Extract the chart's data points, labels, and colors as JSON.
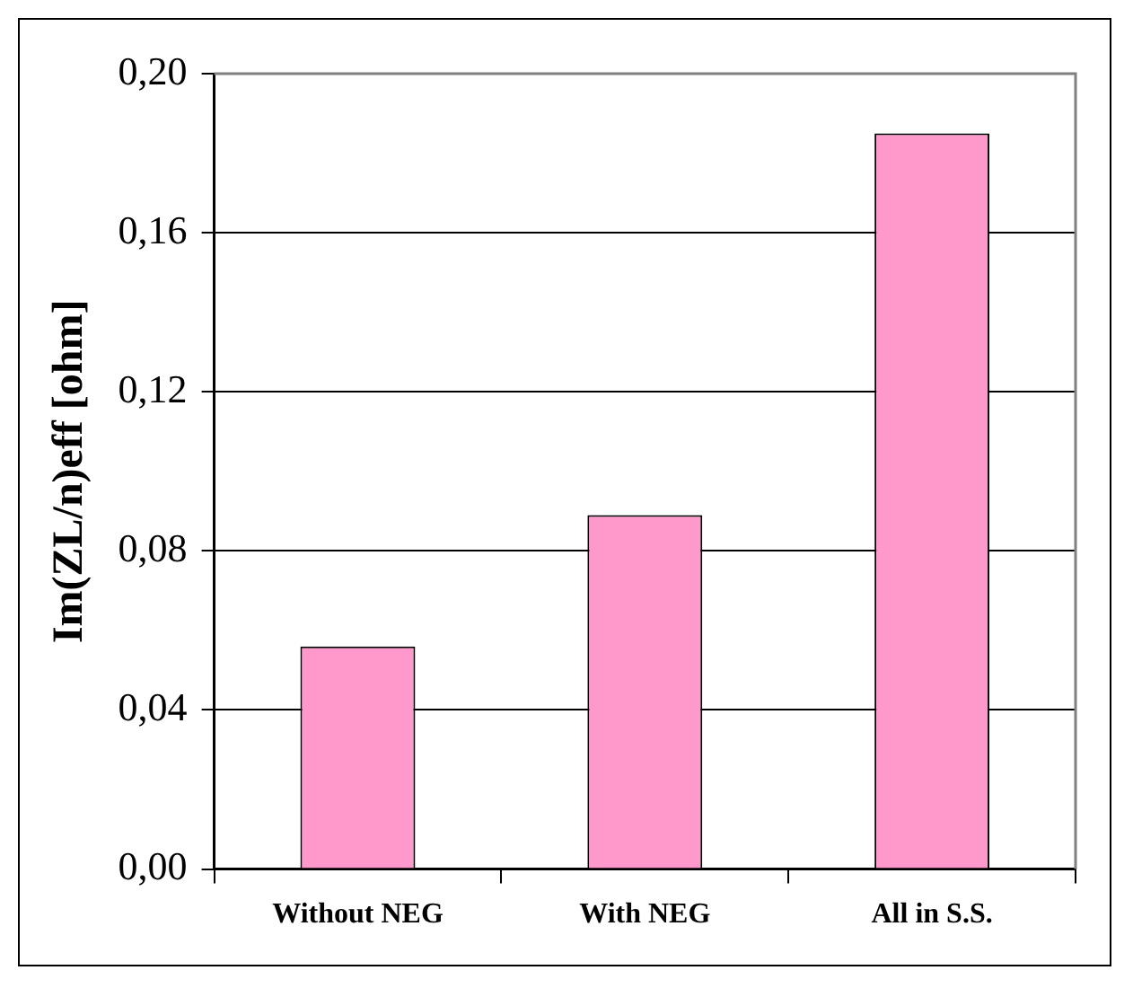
{
  "chart_data": {
    "type": "bar",
    "ylabel": "Im(ZL/n)eff [ohm]",
    "categories": [
      "Without NEG",
      "With NEG",
      "All in S.S."
    ],
    "values": [
      0.056,
      0.089,
      0.185
    ],
    "color": "#ff99cc",
    "ylim": [
      0,
      0.2
    ],
    "yticks": [
      {
        "value": 0,
        "label": "0,00"
      },
      {
        "value": 0.04,
        "label": "0,04"
      },
      {
        "value": 0.08,
        "label": "0,08"
      },
      {
        "value": 0.12,
        "label": "0,12"
      },
      {
        "value": 0.16,
        "label": "0,16"
      },
      {
        "value": 0.2,
        "label": "0,20"
      }
    ],
    "grid": "y",
    "legend": false
  }
}
